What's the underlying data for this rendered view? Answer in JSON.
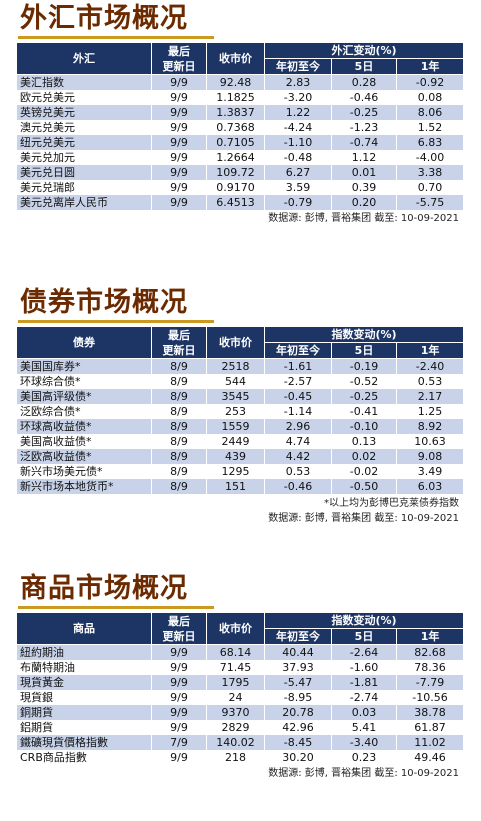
{
  "sections": [
    {
      "title": "外汇市场概况",
      "headers": {
        "name": "外汇",
        "last_update_l1": "最后",
        "last_update_l2": "更新日",
        "close": "收市价",
        "change_group": "外汇变动(%)",
        "ytd": "年初至今",
        "d5": "5日",
        "y1": "1年"
      },
      "rows": [
        [
          "美汇指数",
          "9/9",
          "92.48",
          "2.83",
          "0.28",
          "-0.92"
        ],
        [
          "欧元兑美元",
          "9/9",
          "1.1825",
          "-3.20",
          "-0.46",
          "0.08"
        ],
        [
          "英镑兑美元",
          "9/9",
          "1.3837",
          "1.22",
          "-0.25",
          "8.06"
        ],
        [
          "澳元兑美元",
          "9/9",
          "0.7368",
          "-4.24",
          "-1.23",
          "1.52"
        ],
        [
          "纽元兑美元",
          "9/9",
          "0.7105",
          "-1.10",
          "-0.74",
          "6.83"
        ],
        [
          "美元兑加元",
          "9/9",
          "1.2664",
          "-0.48",
          "1.12",
          "-4.00"
        ],
        [
          "美元兑日圆",
          "9/9",
          "109.72",
          "6.27",
          "0.01",
          "3.38"
        ],
        [
          "美元兑瑞郎",
          "9/9",
          "0.9170",
          "3.59",
          "0.39",
          "0.70"
        ],
        [
          "美元兑离岸人民币",
          "9/9",
          "6.4513",
          "-0.79",
          "0.20",
          "-5.75"
        ]
      ],
      "note": "",
      "source": "数据源: 彭博, 晋裕集团 截至: 10-09-2021"
    },
    {
      "title": "债券市场概况",
      "headers": {
        "name": "债券",
        "last_update_l1": "最后",
        "last_update_l2": "更新日",
        "close": "收市价",
        "change_group": "指数变动(%)",
        "ytd": "年初至今",
        "d5": "5日",
        "y1": "1年"
      },
      "rows": [
        [
          "美国国库券*",
          "8/9",
          "2518",
          "-1.61",
          "-0.19",
          "-2.40"
        ],
        [
          "环球综合债*",
          "8/9",
          "544",
          "-2.57",
          "-0.52",
          "0.53"
        ],
        [
          "美国高评级债*",
          "8/9",
          "3545",
          "-0.45",
          "-0.25",
          "2.17"
        ],
        [
          "泛欧综合债*",
          "8/9",
          "253",
          "-1.14",
          "-0.41",
          "1.25"
        ],
        [
          "环球高收益债*",
          "8/9",
          "1559",
          "2.96",
          "-0.10",
          "8.92"
        ],
        [
          "美国高收益债*",
          "8/9",
          "2449",
          "4.74",
          "0.13",
          "10.63"
        ],
        [
          "泛欧高收益债*",
          "8/9",
          "439",
          "4.42",
          "0.02",
          "9.08"
        ],
        [
          "新兴市场美元债*",
          "8/9",
          "1295",
          "0.53",
          "-0.02",
          "3.49"
        ],
        [
          "新兴市场本地货币*",
          "8/9",
          "151",
          "-0.46",
          "-0.50",
          "6.03"
        ]
      ],
      "note": "*以上均为彭博巴克莱债券指数",
      "source": "数据源: 彭博, 晋裕集团 截至: 10-09-2021"
    },
    {
      "title": "商品市场概况",
      "headers": {
        "name": "商品",
        "last_update_l1": "最后",
        "last_update_l2": "更新日",
        "close": "收市价",
        "change_group": "指数变动(%)",
        "ytd": "年初至今",
        "d5": "5日",
        "y1": "1年"
      },
      "rows": [
        [
          "紐約期油",
          "9/9",
          "68.14",
          "40.44",
          "-2.64",
          "82.68"
        ],
        [
          "布蘭特期油",
          "9/9",
          "71.45",
          "37.93",
          "-1.60",
          "78.36"
        ],
        [
          "現貨黃金",
          "9/9",
          "1795",
          "-5.47",
          "-1.81",
          "-7.79"
        ],
        [
          "現貨銀",
          "9/9",
          "24",
          "-8.95",
          "-2.74",
          "-10.56"
        ],
        [
          "銅期貨",
          "9/9",
          "9370",
          "20.78",
          "0.03",
          "38.78"
        ],
        [
          "鋁期貨",
          "9/9",
          "2829",
          "42.96",
          "5.41",
          "61.87"
        ],
        [
          "鐵礦現貨價格指數",
          "7/9",
          "140.02",
          "-8.45",
          "-3.40",
          "11.02"
        ],
        [
          "CRB商品指數",
          "9/9",
          "218",
          "30.20",
          "0.23",
          "49.46"
        ]
      ],
      "note": "",
      "source": "数据源: 彭博, 晋裕集团 截至: 10-09-2021"
    }
  ]
}
